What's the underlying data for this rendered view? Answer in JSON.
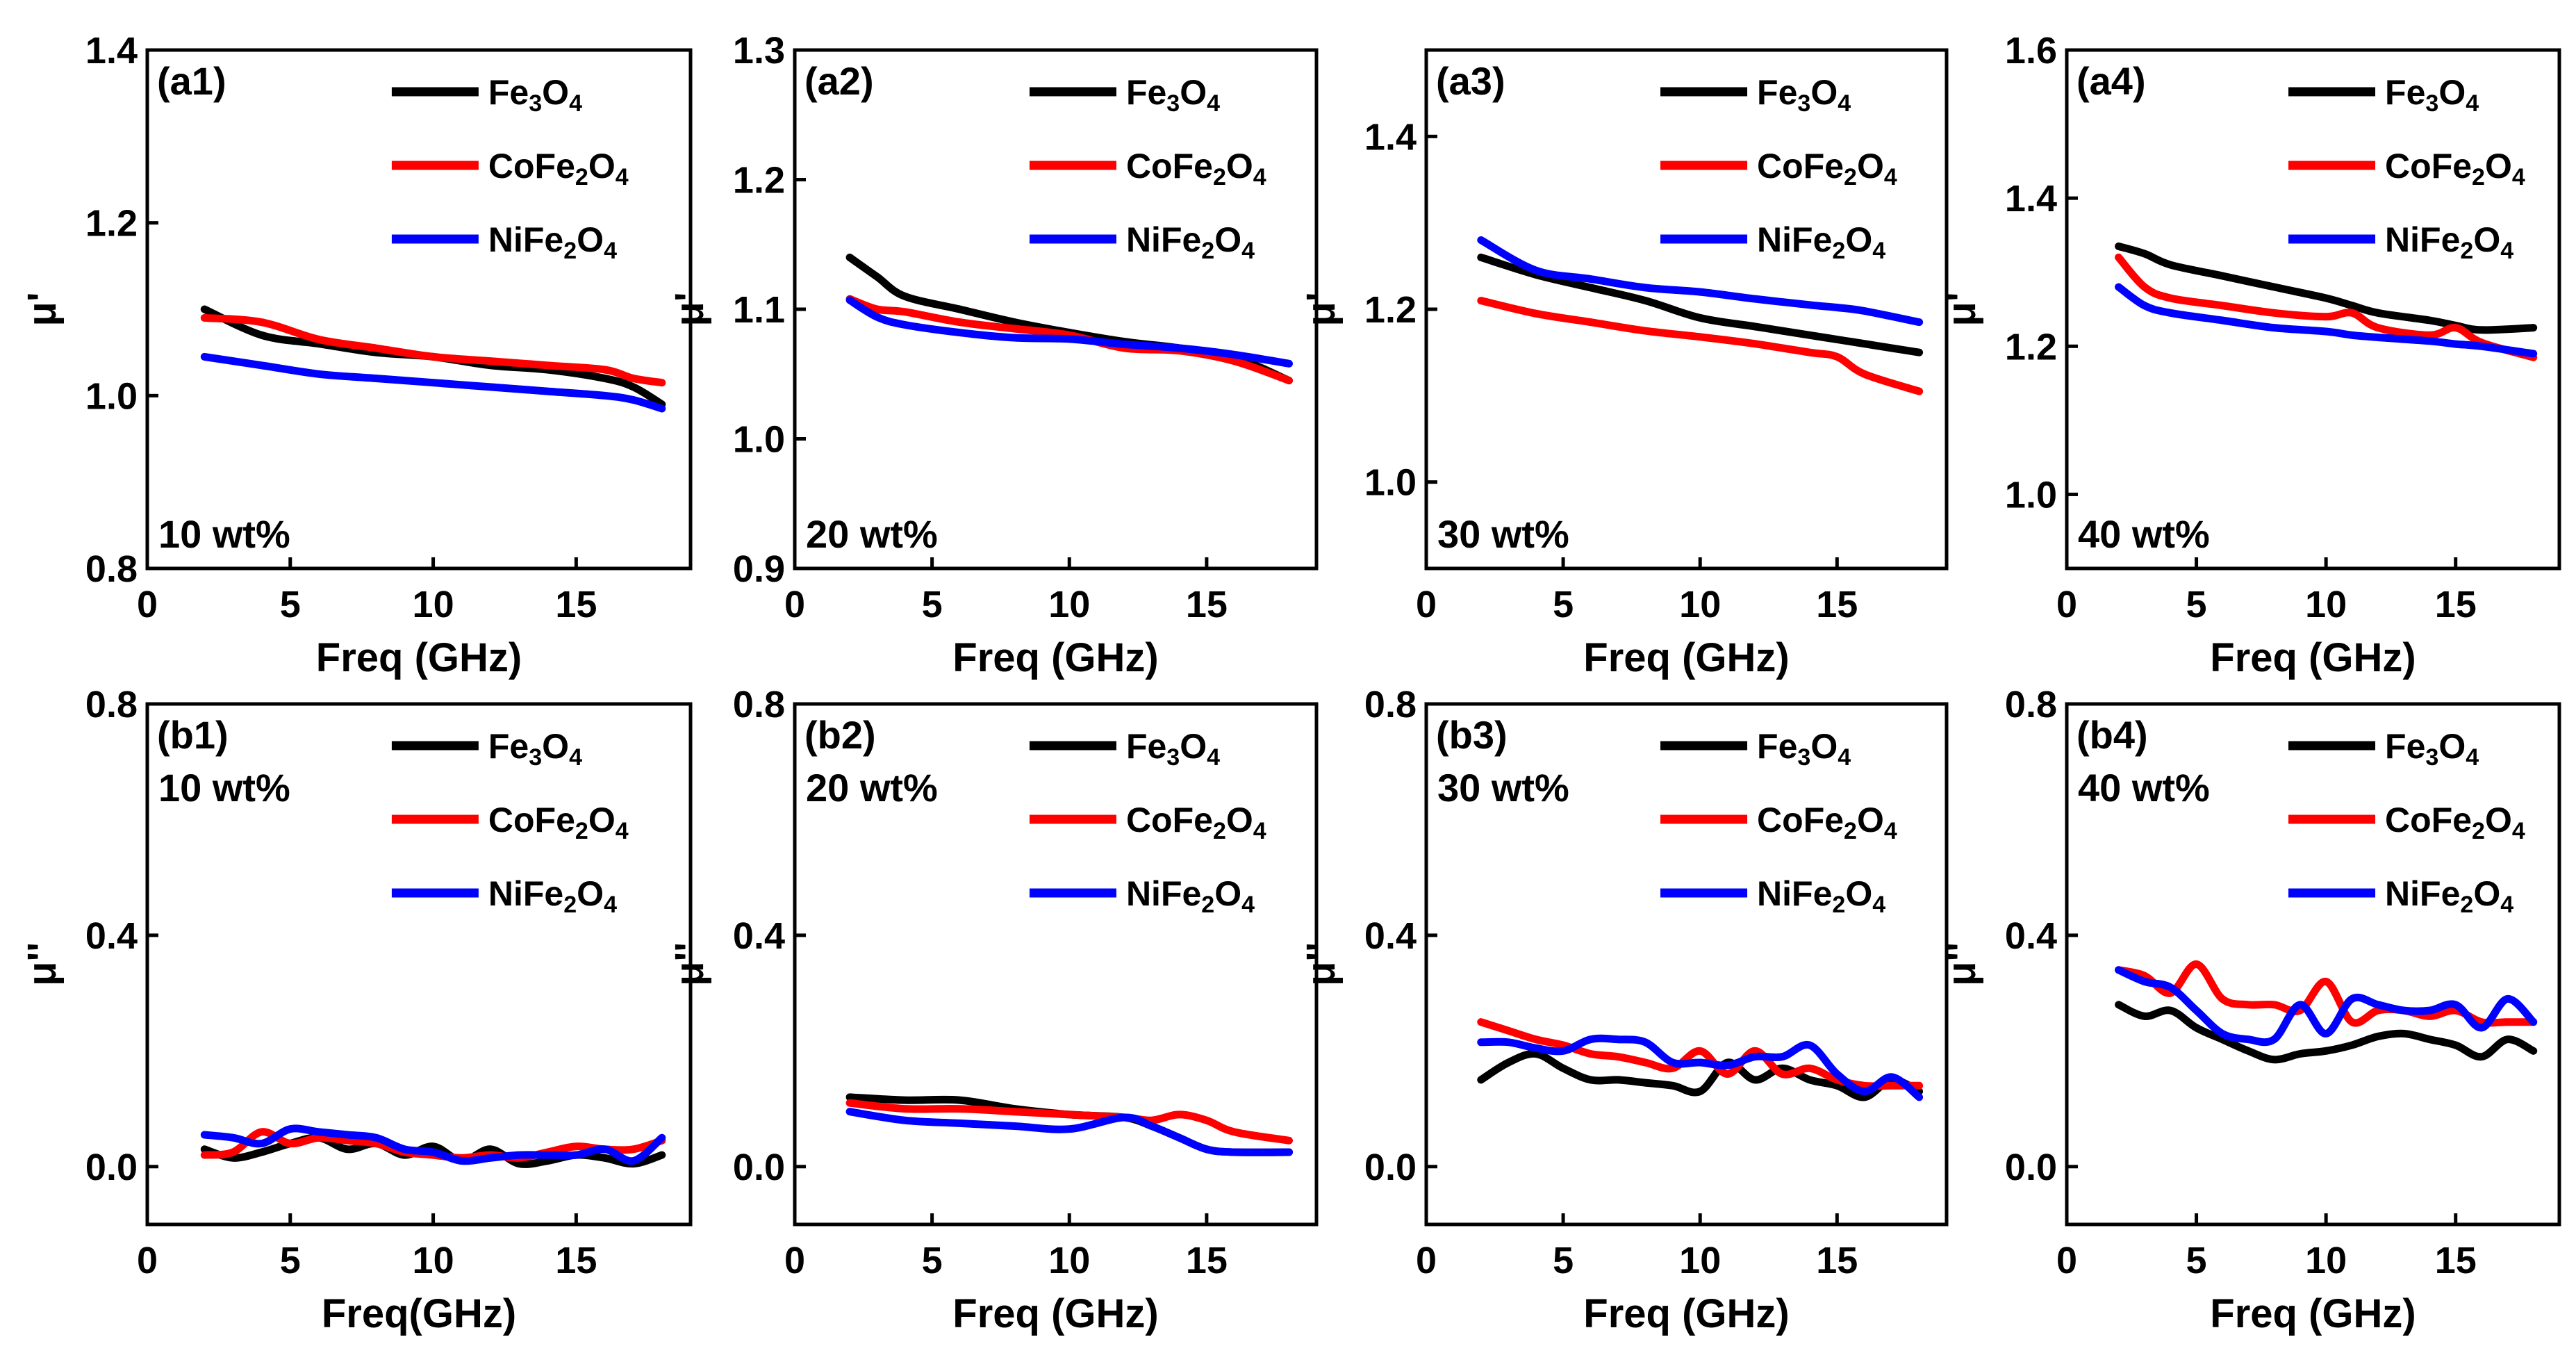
{
  "colors": {
    "Fe3O4": "#000000",
    "CoFe2O4": "#ff0000",
    "NiFe2O4": "#0000ff"
  },
  "chart_data": [
    {
      "type": "line",
      "tag": "(a1)",
      "concentration": "10 wt%",
      "xlabel": "Freq (GHz)",
      "ylabel": "μ'",
      "xlim": [
        0,
        19
      ],
      "ylim": [
        0.8,
        1.4
      ],
      "xticks": [
        "0",
        "5",
        "10",
        "15"
      ],
      "xtick_values": [
        0,
        5,
        10,
        15
      ],
      "yticks": [
        "0.8",
        "1.0",
        "1.2",
        "1.4"
      ],
      "ytick_values": [
        0.8,
        1.0,
        1.2,
        1.4
      ],
      "x": [
        2,
        4,
        6,
        8,
        10,
        12,
        14,
        16,
        17,
        18
      ],
      "series": [
        {
          "key": "Fe3O4",
          "name": [
            "Fe",
            "3",
            "O",
            "4"
          ],
          "values": [
            1.1,
            1.07,
            1.06,
            1.05,
            1.045,
            1.035,
            1.03,
            1.02,
            1.01,
            0.99
          ]
        },
        {
          "key": "CoFe2O4",
          "name": [
            "CoFe",
            "2",
            "O",
            "4"
          ],
          "values": [
            1.09,
            1.085,
            1.065,
            1.055,
            1.045,
            1.04,
            1.035,
            1.03,
            1.02,
            1.015
          ]
        },
        {
          "key": "NiFe2O4",
          "name": [
            "NiFe",
            "2",
            "O",
            "4"
          ],
          "values": [
            1.045,
            1.035,
            1.025,
            1.02,
            1.015,
            1.01,
            1.005,
            1.0,
            0.995,
            0.985
          ]
        }
      ]
    },
    {
      "type": "line",
      "tag": "(a2)",
      "concentration": "20 wt%",
      "xlabel": "Freq (GHz)",
      "ylabel": "μ'",
      "xlim": [
        0,
        19
      ],
      "ylim": [
        0.9,
        1.3
      ],
      "xticks": [
        "0",
        "5",
        "10",
        "15"
      ],
      "xtick_values": [
        0,
        5,
        10,
        15
      ],
      "yticks": [
        "0.9",
        "1.0",
        "1.1",
        "1.2",
        "1.3"
      ],
      "ytick_values": [
        0.9,
        1.0,
        1.1,
        1.2,
        1.3
      ],
      "x": [
        2,
        3,
        4,
        6,
        8,
        10,
        12,
        14,
        16,
        18
      ],
      "series": [
        {
          "key": "Fe3O4",
          "name": [
            "Fe",
            "3",
            "O",
            "4"
          ],
          "values": [
            1.14,
            1.125,
            1.11,
            1.1,
            1.09,
            1.082,
            1.075,
            1.07,
            1.063,
            1.045
          ]
        },
        {
          "key": "CoFe2O4",
          "name": [
            "CoFe",
            "2",
            "O",
            "4"
          ],
          "values": [
            1.108,
            1.1,
            1.098,
            1.09,
            1.085,
            1.08,
            1.07,
            1.068,
            1.06,
            1.045
          ]
        },
        {
          "key": "NiFe2O4",
          "name": [
            "NiFe",
            "2",
            "O",
            "4"
          ],
          "values": [
            1.107,
            1.094,
            1.088,
            1.082,
            1.078,
            1.077,
            1.073,
            1.07,
            1.065,
            1.058
          ]
        }
      ]
    },
    {
      "type": "line",
      "tag": "(a3)",
      "concentration": "30 wt%",
      "xlabel": "Freq (GHz)",
      "ylabel": "μ'",
      "xlim": [
        0,
        19
      ],
      "ylim": [
        0.9,
        1.5
      ],
      "xticks": [
        "0",
        "5",
        "10",
        "15"
      ],
      "xtick_values": [
        0,
        5,
        10,
        15
      ],
      "yticks": [
        "1.0",
        "1.2",
        "1.4"
      ],
      "ytick_values": [
        1.0,
        1.2,
        1.4
      ],
      "x": [
        2,
        4,
        6,
        8,
        10,
        12,
        14,
        15,
        16,
        18
      ],
      "series": [
        {
          "key": "Fe3O4",
          "name": [
            "Fe",
            "3",
            "O",
            "4"
          ],
          "values": [
            1.26,
            1.24,
            1.225,
            1.21,
            1.19,
            1.18,
            1.17,
            1.165,
            1.16,
            1.15
          ]
        },
        {
          "key": "CoFe2O4",
          "name": [
            "CoFe",
            "2",
            "O",
            "4"
          ],
          "values": [
            1.21,
            1.195,
            1.185,
            1.175,
            1.168,
            1.16,
            1.15,
            1.145,
            1.125,
            1.105
          ]
        },
        {
          "key": "NiFe2O4",
          "name": [
            "NiFe",
            "2",
            "O",
            "4"
          ],
          "values": [
            1.28,
            1.245,
            1.235,
            1.225,
            1.22,
            1.212,
            1.205,
            1.202,
            1.198,
            1.185
          ]
        }
      ]
    },
    {
      "type": "line",
      "tag": "(a4)",
      "concentration": "40 wt%",
      "xlabel": "Freq (GHz)",
      "ylabel": "μ'",
      "xlim": [
        0,
        19
      ],
      "ylim": [
        0.9,
        1.6
      ],
      "xticks": [
        "0",
        "5",
        "10",
        "15"
      ],
      "xtick_values": [
        0,
        5,
        10,
        15
      ],
      "yticks": [
        "1.0",
        "1.2",
        "1.4",
        "1.6"
      ],
      "ytick_values": [
        1.0,
        1.2,
        1.4,
        1.6
      ],
      "x": [
        2,
        3,
        4,
        6,
        8,
        10,
        11,
        12,
        14,
        15,
        16,
        18
      ],
      "series": [
        {
          "key": "Fe3O4",
          "name": [
            "Fe",
            "3",
            "O",
            "4"
          ],
          "values": [
            1.335,
            1.325,
            1.31,
            1.295,
            1.28,
            1.265,
            1.255,
            1.245,
            1.235,
            1.228,
            1.222,
            1.225
          ]
        },
        {
          "key": "CoFe2O4",
          "name": [
            "CoFe",
            "2",
            "O",
            "4"
          ],
          "values": [
            1.32,
            1.28,
            1.265,
            1.255,
            1.245,
            1.24,
            1.245,
            1.225,
            1.215,
            1.225,
            1.205,
            1.185
          ]
        },
        {
          "key": "NiFe2O4",
          "name": [
            "NiFe",
            "2",
            "O",
            "4"
          ],
          "values": [
            1.28,
            1.255,
            1.245,
            1.235,
            1.225,
            1.22,
            1.215,
            1.212,
            1.207,
            1.203,
            1.2,
            1.19
          ]
        }
      ]
    },
    {
      "type": "line",
      "tag": "(b1)",
      "concentration": "10 wt%",
      "xlabel": "Freq(GHz)",
      "ylabel": "μ''",
      "xlim": [
        0,
        19
      ],
      "ylim": [
        -0.1,
        0.8
      ],
      "xticks": [
        "0",
        "5",
        "10",
        "15"
      ],
      "xtick_values": [
        0,
        5,
        10,
        15
      ],
      "yticks": [
        "0.0",
        "0.4",
        "0.8"
      ],
      "ytick_values": [
        0.0,
        0.4,
        0.8
      ],
      "x": [
        2,
        3,
        4,
        5,
        6,
        7,
        8,
        9,
        10,
        11,
        12,
        13,
        14,
        15,
        16,
        17,
        18
      ],
      "series": [
        {
          "key": "Fe3O4",
          "name": [
            "Fe",
            "3",
            "O",
            "4"
          ],
          "values": [
            0.03,
            0.015,
            0.025,
            0.04,
            0.05,
            0.03,
            0.04,
            0.02,
            0.035,
            0.01,
            0.03,
            0.005,
            0.01,
            0.02,
            0.015,
            0.005,
            0.02
          ]
        },
        {
          "key": "CoFe2O4",
          "name": [
            "CoFe",
            "2",
            "O",
            "4"
          ],
          "values": [
            0.02,
            0.025,
            0.06,
            0.04,
            0.05,
            0.045,
            0.04,
            0.025,
            0.02,
            0.015,
            0.02,
            0.015,
            0.025,
            0.035,
            0.03,
            0.03,
            0.045
          ]
        },
        {
          "key": "NiFe2O4",
          "name": [
            "NiFe",
            "2",
            "O",
            "4"
          ],
          "values": [
            0.055,
            0.05,
            0.04,
            0.065,
            0.06,
            0.055,
            0.05,
            0.03,
            0.025,
            0.01,
            0.015,
            0.02,
            0.02,
            0.02,
            0.03,
            0.01,
            0.05
          ]
        }
      ]
    },
    {
      "type": "line",
      "tag": "(b2)",
      "concentration": "20 wt%",
      "xlabel": "Freq (GHz)",
      "ylabel": "μ''",
      "xlim": [
        0,
        19
      ],
      "ylim": [
        -0.1,
        0.8
      ],
      "xticks": [
        "0",
        "5",
        "10",
        "15"
      ],
      "xtick_values": [
        0,
        5,
        10,
        15
      ],
      "yticks": [
        "0.0",
        "0.4",
        "0.8"
      ],
      "ytick_values": [
        0.0,
        0.4,
        0.8
      ],
      "x": [
        2,
        4,
        6,
        8,
        10,
        12,
        13,
        14,
        15,
        16,
        18
      ],
      "series": [
        {
          "key": "Fe3O4",
          "name": [
            "Fe",
            "3",
            "O",
            "4"
          ],
          "values": [
            0.12,
            0.115,
            0.115,
            0.1,
            0.09,
            0.085,
            0.07,
            0.05,
            0.03,
            0.025,
            0.025
          ]
        },
        {
          "key": "CoFe2O4",
          "name": [
            "CoFe",
            "2",
            "O",
            "4"
          ],
          "values": [
            0.11,
            0.1,
            0.1,
            0.095,
            0.09,
            0.085,
            0.08,
            0.09,
            0.08,
            0.06,
            0.045
          ]
        },
        {
          "key": "NiFe2O4",
          "name": [
            "NiFe",
            "2",
            "O",
            "4"
          ],
          "values": [
            0.095,
            0.08,
            0.075,
            0.07,
            0.065,
            0.085,
            0.07,
            0.05,
            0.03,
            0.025,
            0.025
          ]
        }
      ]
    },
    {
      "type": "line",
      "tag": "(b3)",
      "concentration": "30 wt%",
      "xlabel": "Freq (GHz)",
      "ylabel": "μ''",
      "xlim": [
        0,
        19
      ],
      "ylim": [
        -0.1,
        0.8
      ],
      "xticks": [
        "0",
        "5",
        "10",
        "15"
      ],
      "xtick_values": [
        0,
        5,
        10,
        15
      ],
      "yticks": [
        "0.0",
        "0.4",
        "0.8"
      ],
      "ytick_values": [
        0.0,
        0.4,
        0.8
      ],
      "x": [
        2,
        3,
        4,
        5,
        6,
        7,
        8,
        9,
        10,
        11,
        12,
        13,
        14,
        15,
        16,
        17,
        18
      ],
      "series": [
        {
          "key": "Fe3O4",
          "name": [
            "Fe",
            "3",
            "O",
            "4"
          ],
          "values": [
            0.15,
            0.18,
            0.195,
            0.17,
            0.15,
            0.15,
            0.145,
            0.14,
            0.13,
            0.18,
            0.15,
            0.17,
            0.15,
            0.14,
            0.12,
            0.15,
            0.13
          ]
        },
        {
          "key": "CoFe2O4",
          "name": [
            "CoFe",
            "2",
            "O",
            "4"
          ],
          "values": [
            0.25,
            0.235,
            0.22,
            0.21,
            0.195,
            0.19,
            0.18,
            0.17,
            0.2,
            0.16,
            0.2,
            0.16,
            0.17,
            0.15,
            0.14,
            0.14,
            0.14
          ]
        },
        {
          "key": "NiFe2O4",
          "name": [
            "NiFe",
            "2",
            "O",
            "4"
          ],
          "values": [
            0.215,
            0.215,
            0.205,
            0.2,
            0.22,
            0.22,
            0.215,
            0.18,
            0.18,
            0.175,
            0.19,
            0.19,
            0.21,
            0.16,
            0.13,
            0.155,
            0.12
          ]
        }
      ]
    },
    {
      "type": "line",
      "tag": "(b4)",
      "concentration": "40 wt%",
      "xlabel": "Freq (GHz)",
      "ylabel": "μ''",
      "xlim": [
        0,
        19
      ],
      "ylim": [
        -0.1,
        0.8
      ],
      "xticks": [
        "0",
        "5",
        "10",
        "15"
      ],
      "xtick_values": [
        0,
        5,
        10,
        15
      ],
      "yticks": [
        "0.0",
        "0.4",
        "0.8"
      ],
      "ytick_values": [
        0.0,
        0.4,
        0.8
      ],
      "x": [
        2,
        3,
        4,
        5,
        6,
        7,
        8,
        9,
        10,
        11,
        12,
        13,
        14,
        15,
        16,
        17,
        18
      ],
      "series": [
        {
          "key": "Fe3O4",
          "name": [
            "Fe",
            "3",
            "O",
            "4"
          ],
          "values": [
            0.28,
            0.26,
            0.27,
            0.24,
            0.22,
            0.2,
            0.185,
            0.195,
            0.2,
            0.21,
            0.225,
            0.23,
            0.22,
            0.21,
            0.19,
            0.22,
            0.2
          ]
        },
        {
          "key": "CoFe2O4",
          "name": [
            "CoFe",
            "2",
            "O",
            "4"
          ],
          "values": [
            0.34,
            0.33,
            0.3,
            0.35,
            0.29,
            0.28,
            0.28,
            0.27,
            0.32,
            0.25,
            0.27,
            0.27,
            0.26,
            0.27,
            0.25,
            0.25,
            0.25
          ]
        },
        {
          "key": "NiFe2O4",
          "name": [
            "NiFe",
            "2",
            "O",
            "4"
          ],
          "values": [
            0.34,
            0.32,
            0.31,
            0.27,
            0.23,
            0.22,
            0.22,
            0.28,
            0.23,
            0.29,
            0.28,
            0.27,
            0.27,
            0.28,
            0.24,
            0.29,
            0.25
          ]
        }
      ]
    }
  ]
}
